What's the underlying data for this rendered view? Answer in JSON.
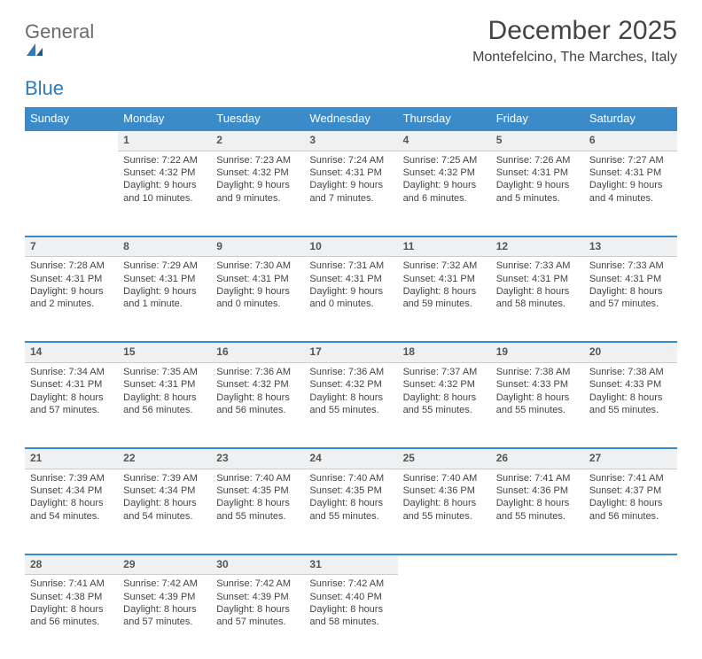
{
  "brand": {
    "word1": "General",
    "word2": "Blue"
  },
  "title": "December 2025",
  "location": "Montefelcino, The Marches, Italy",
  "colors": {
    "header_bg": "#3b8bc8",
    "header_text": "#ffffff",
    "daynum_bg": "#eef0f2",
    "row_border": "#3b8bc8",
    "text": "#444444",
    "brand_gray": "#6b6b6b",
    "brand_blue": "#2f78b9"
  },
  "day_headers": [
    "Sunday",
    "Monday",
    "Tuesday",
    "Wednesday",
    "Thursday",
    "Friday",
    "Saturday"
  ],
  "weeks": [
    {
      "nums": [
        "",
        "1",
        "2",
        "3",
        "4",
        "5",
        "6"
      ],
      "cells": [
        null,
        {
          "sunrise": "Sunrise: 7:22 AM",
          "sunset": "Sunset: 4:32 PM",
          "d1": "Daylight: 9 hours",
          "d2": "and 10 minutes."
        },
        {
          "sunrise": "Sunrise: 7:23 AM",
          "sunset": "Sunset: 4:32 PM",
          "d1": "Daylight: 9 hours",
          "d2": "and 9 minutes."
        },
        {
          "sunrise": "Sunrise: 7:24 AM",
          "sunset": "Sunset: 4:31 PM",
          "d1": "Daylight: 9 hours",
          "d2": "and 7 minutes."
        },
        {
          "sunrise": "Sunrise: 7:25 AM",
          "sunset": "Sunset: 4:32 PM",
          "d1": "Daylight: 9 hours",
          "d2": "and 6 minutes."
        },
        {
          "sunrise": "Sunrise: 7:26 AM",
          "sunset": "Sunset: 4:31 PM",
          "d1": "Daylight: 9 hours",
          "d2": "and 5 minutes."
        },
        {
          "sunrise": "Sunrise: 7:27 AM",
          "sunset": "Sunset: 4:31 PM",
          "d1": "Daylight: 9 hours",
          "d2": "and 4 minutes."
        }
      ]
    },
    {
      "nums": [
        "7",
        "8",
        "9",
        "10",
        "11",
        "12",
        "13"
      ],
      "cells": [
        {
          "sunrise": "Sunrise: 7:28 AM",
          "sunset": "Sunset: 4:31 PM",
          "d1": "Daylight: 9 hours",
          "d2": "and 2 minutes."
        },
        {
          "sunrise": "Sunrise: 7:29 AM",
          "sunset": "Sunset: 4:31 PM",
          "d1": "Daylight: 9 hours",
          "d2": "and 1 minute."
        },
        {
          "sunrise": "Sunrise: 7:30 AM",
          "sunset": "Sunset: 4:31 PM",
          "d1": "Daylight: 9 hours",
          "d2": "and 0 minutes."
        },
        {
          "sunrise": "Sunrise: 7:31 AM",
          "sunset": "Sunset: 4:31 PM",
          "d1": "Daylight: 9 hours",
          "d2": "and 0 minutes."
        },
        {
          "sunrise": "Sunrise: 7:32 AM",
          "sunset": "Sunset: 4:31 PM",
          "d1": "Daylight: 8 hours",
          "d2": "and 59 minutes."
        },
        {
          "sunrise": "Sunrise: 7:33 AM",
          "sunset": "Sunset: 4:31 PM",
          "d1": "Daylight: 8 hours",
          "d2": "and 58 minutes."
        },
        {
          "sunrise": "Sunrise: 7:33 AM",
          "sunset": "Sunset: 4:31 PM",
          "d1": "Daylight: 8 hours",
          "d2": "and 57 minutes."
        }
      ]
    },
    {
      "nums": [
        "14",
        "15",
        "16",
        "17",
        "18",
        "19",
        "20"
      ],
      "cells": [
        {
          "sunrise": "Sunrise: 7:34 AM",
          "sunset": "Sunset: 4:31 PM",
          "d1": "Daylight: 8 hours",
          "d2": "and 57 minutes."
        },
        {
          "sunrise": "Sunrise: 7:35 AM",
          "sunset": "Sunset: 4:31 PM",
          "d1": "Daylight: 8 hours",
          "d2": "and 56 minutes."
        },
        {
          "sunrise": "Sunrise: 7:36 AM",
          "sunset": "Sunset: 4:32 PM",
          "d1": "Daylight: 8 hours",
          "d2": "and 56 minutes."
        },
        {
          "sunrise": "Sunrise: 7:36 AM",
          "sunset": "Sunset: 4:32 PM",
          "d1": "Daylight: 8 hours",
          "d2": "and 55 minutes."
        },
        {
          "sunrise": "Sunrise: 7:37 AM",
          "sunset": "Sunset: 4:32 PM",
          "d1": "Daylight: 8 hours",
          "d2": "and 55 minutes."
        },
        {
          "sunrise": "Sunrise: 7:38 AM",
          "sunset": "Sunset: 4:33 PM",
          "d1": "Daylight: 8 hours",
          "d2": "and 55 minutes."
        },
        {
          "sunrise": "Sunrise: 7:38 AM",
          "sunset": "Sunset: 4:33 PM",
          "d1": "Daylight: 8 hours",
          "d2": "and 55 minutes."
        }
      ]
    },
    {
      "nums": [
        "21",
        "22",
        "23",
        "24",
        "25",
        "26",
        "27"
      ],
      "cells": [
        {
          "sunrise": "Sunrise: 7:39 AM",
          "sunset": "Sunset: 4:34 PM",
          "d1": "Daylight: 8 hours",
          "d2": "and 54 minutes."
        },
        {
          "sunrise": "Sunrise: 7:39 AM",
          "sunset": "Sunset: 4:34 PM",
          "d1": "Daylight: 8 hours",
          "d2": "and 54 minutes."
        },
        {
          "sunrise": "Sunrise: 7:40 AM",
          "sunset": "Sunset: 4:35 PM",
          "d1": "Daylight: 8 hours",
          "d2": "and 55 minutes."
        },
        {
          "sunrise": "Sunrise: 7:40 AM",
          "sunset": "Sunset: 4:35 PM",
          "d1": "Daylight: 8 hours",
          "d2": "and 55 minutes."
        },
        {
          "sunrise": "Sunrise: 7:40 AM",
          "sunset": "Sunset: 4:36 PM",
          "d1": "Daylight: 8 hours",
          "d2": "and 55 minutes."
        },
        {
          "sunrise": "Sunrise: 7:41 AM",
          "sunset": "Sunset: 4:36 PM",
          "d1": "Daylight: 8 hours",
          "d2": "and 55 minutes."
        },
        {
          "sunrise": "Sunrise: 7:41 AM",
          "sunset": "Sunset: 4:37 PM",
          "d1": "Daylight: 8 hours",
          "d2": "and 56 minutes."
        }
      ]
    },
    {
      "nums": [
        "28",
        "29",
        "30",
        "31",
        "",
        "",
        ""
      ],
      "cells": [
        {
          "sunrise": "Sunrise: 7:41 AM",
          "sunset": "Sunset: 4:38 PM",
          "d1": "Daylight: 8 hours",
          "d2": "and 56 minutes."
        },
        {
          "sunrise": "Sunrise: 7:42 AM",
          "sunset": "Sunset: 4:39 PM",
          "d1": "Daylight: 8 hours",
          "d2": "and 57 minutes."
        },
        {
          "sunrise": "Sunrise: 7:42 AM",
          "sunset": "Sunset: 4:39 PM",
          "d1": "Daylight: 8 hours",
          "d2": "and 57 minutes."
        },
        {
          "sunrise": "Sunrise: 7:42 AM",
          "sunset": "Sunset: 4:40 PM",
          "d1": "Daylight: 8 hours",
          "d2": "and 58 minutes."
        },
        null,
        null,
        null
      ]
    }
  ]
}
